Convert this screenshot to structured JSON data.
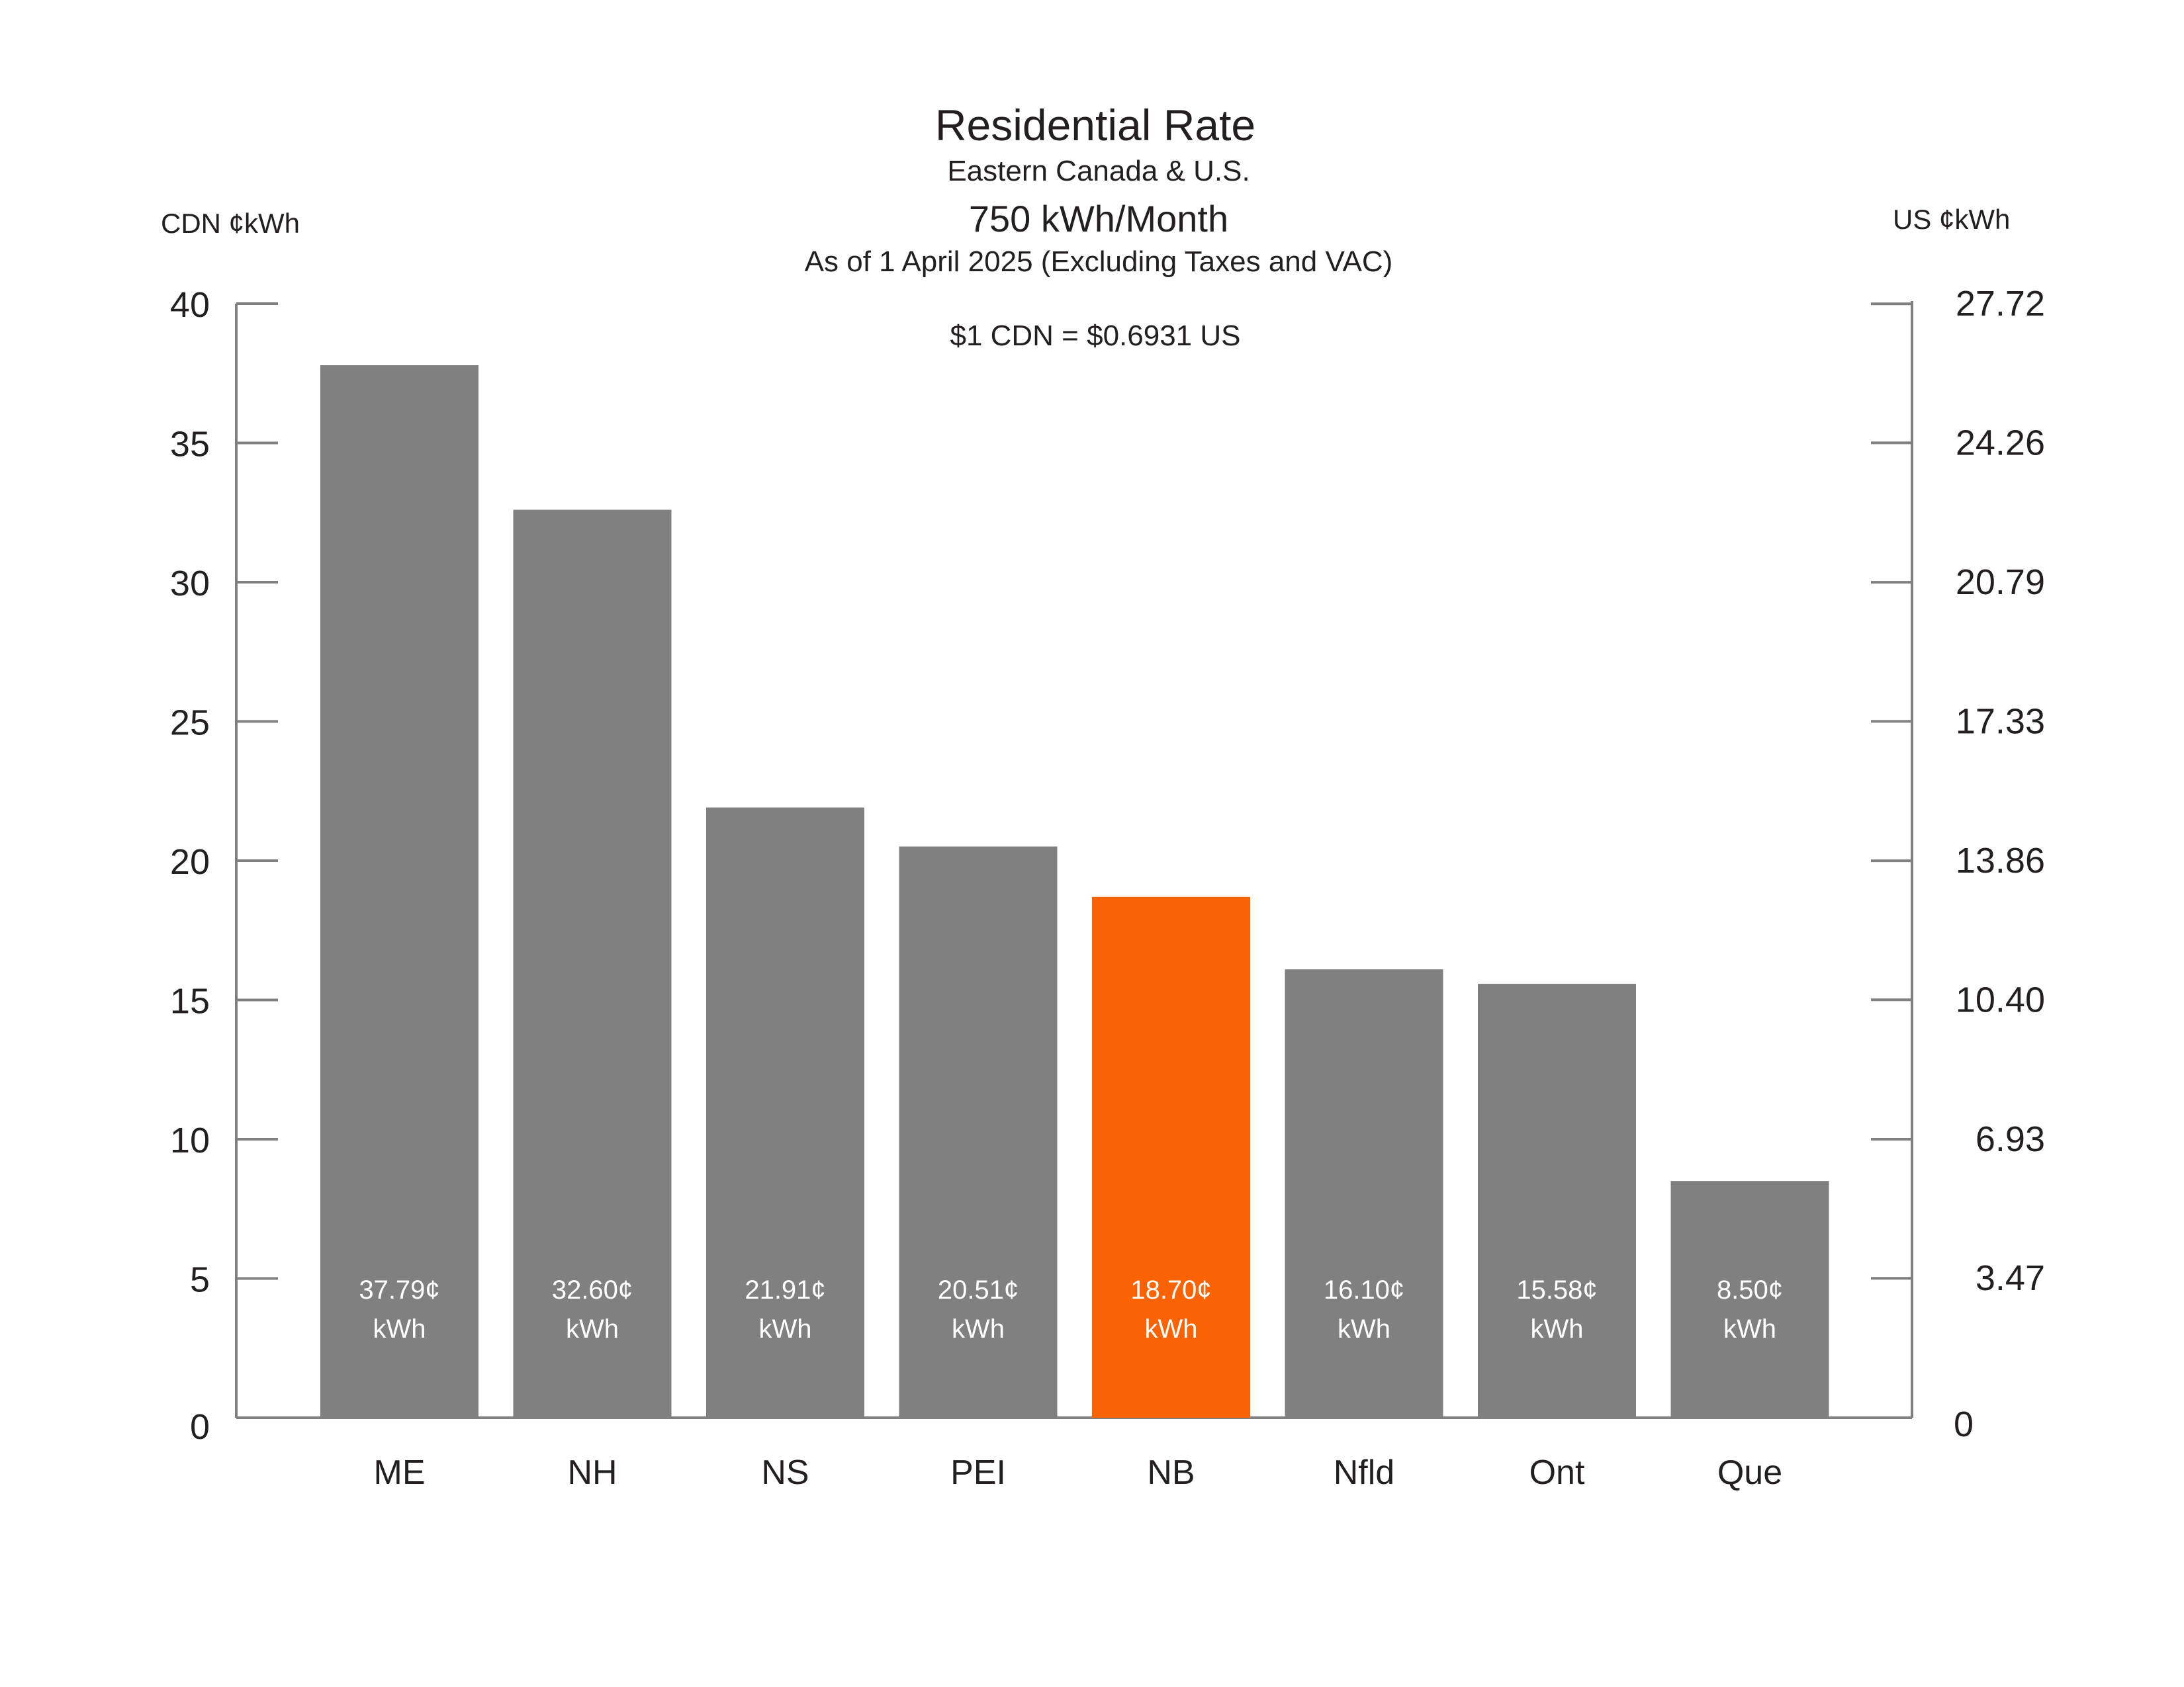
{
  "chart_data": {
    "type": "bar",
    "title": "Residential Rate",
    "subtitles": [
      "Eastern Canada & U.S.",
      "750 kWh/Month",
      "As of 1 April 2025 (Excluding Taxes and VAC)"
    ],
    "annotation": "$1 CDN = $0.6931 US",
    "ylabel_left": "CDN ¢kWh",
    "ylabel_right": "US ¢kWh",
    "ylim": [
      0,
      40
    ],
    "left_ticks": [
      "0",
      "5",
      "10",
      "15",
      "20",
      "25",
      "30",
      "35",
      "40"
    ],
    "left_tick_values": [
      0,
      5,
      10,
      15,
      20,
      25,
      30,
      35,
      40
    ],
    "right_ticks": [
      "0",
      "3.47",
      "6.93",
      "10.40",
      "13.86",
      "17.33",
      "20.79",
      "24.26",
      "27.72"
    ],
    "right_tick_values": [
      0,
      3.47,
      6.93,
      10.4,
      13.86,
      17.33,
      20.79,
      24.26,
      27.72
    ],
    "exchange_rate": 0.6931,
    "categories": [
      "ME",
      "NH",
      "NS",
      "PEI",
      "NB",
      "Nfld",
      "Ont",
      "Que"
    ],
    "values": [
      37.79,
      32.6,
      21.91,
      20.51,
      18.7,
      16.1,
      15.58,
      8.5
    ],
    "value_labels": [
      "37.79¢",
      "32.60¢",
      "21.91¢",
      "20.51¢",
      "18.70¢",
      "16.10¢",
      "15.58¢",
      "8.50¢"
    ],
    "value_unit": "kWh",
    "highlight": "NB",
    "grid": false,
    "legend": "none",
    "colors": {
      "bar": "#808080",
      "highlight": "#FA6304",
      "axis": "#808080",
      "text": "#231f20"
    }
  }
}
